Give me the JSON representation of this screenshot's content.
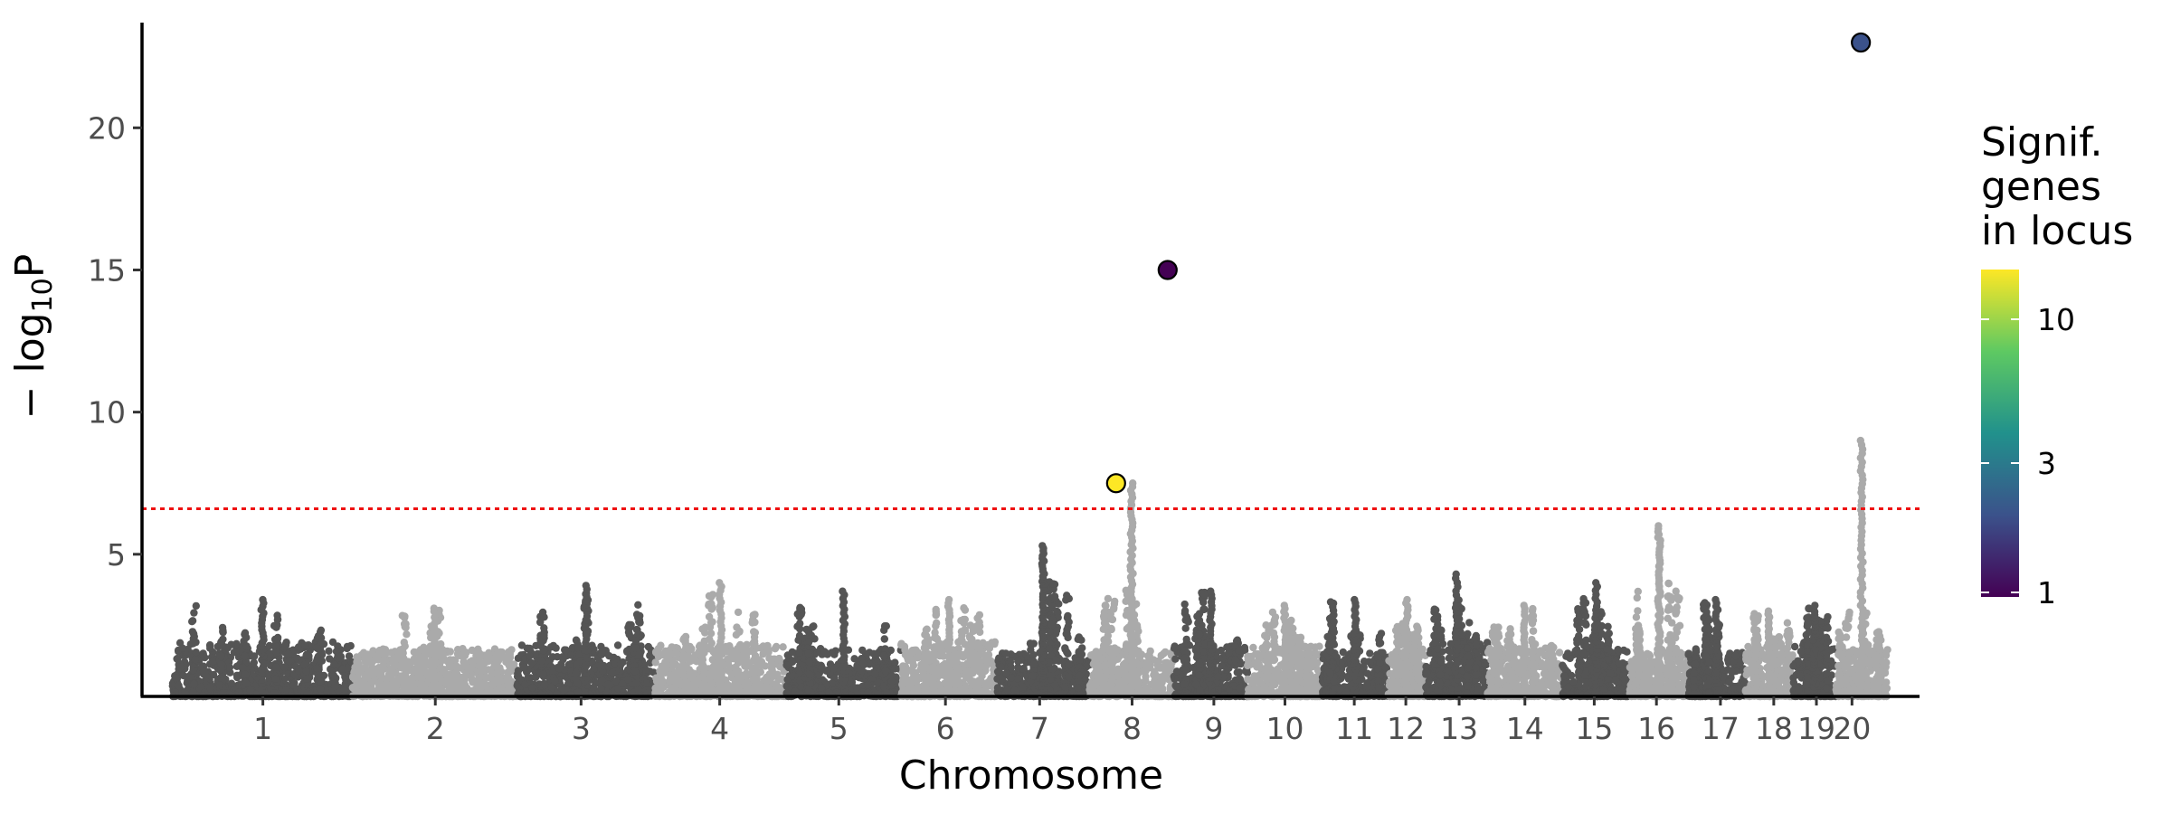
{
  "chart_data": {
    "type": "scatter",
    "subtype": "manhattan",
    "xlabel": "Chromosome",
    "ylabel_main": "− log",
    "ylabel_sub": "10",
    "ylabel_tail": "P",
    "y_ticks": [
      5,
      10,
      15,
      20
    ],
    "y_tick_labels": [
      "5",
      "10",
      "15",
      "20"
    ],
    "ylim": [
      0,
      23.7
    ],
    "grid": false,
    "threshold": {
      "value": 6.6,
      "color": "#ee1111",
      "style": "dotted"
    },
    "band_colors": [
      "#555555",
      "#aaaaaa"
    ],
    "chromosomes": [
      {
        "label": "1",
        "start": 0.0,
        "end": 10.15,
        "base": 1.6,
        "peak": 3.4,
        "tick": 5.1
      },
      {
        "label": "2",
        "start": 10.15,
        "end": 19.4,
        "base": 1.4,
        "peak": 3.1,
        "tick": 14.8
      },
      {
        "label": "3",
        "start": 19.4,
        "end": 27.15,
        "base": 1.5,
        "peak": 3.9,
        "tick": 23.0
      },
      {
        "label": "4",
        "start": 27.15,
        "end": 34.55,
        "base": 1.5,
        "peak": 4.0,
        "tick": 30.8
      },
      {
        "label": "5",
        "start": 34.55,
        "end": 41.0,
        "base": 1.4,
        "peak": 3.7,
        "tick": 37.5
      },
      {
        "label": "6",
        "start": 41.0,
        "end": 46.4,
        "base": 1.6,
        "peak": 3.4,
        "tick": 43.5
      },
      {
        "label": "7",
        "start": 46.4,
        "end": 51.6,
        "base": 1.3,
        "peak": 5.3,
        "tick": 48.8
      },
      {
        "label": "8",
        "start": 51.6,
        "end": 56.35,
        "base": 1.4,
        "peak": 7.5,
        "tick": 54.0
      },
      {
        "label": "9",
        "start": 56.35,
        "end": 60.5,
        "base": 1.5,
        "peak": 3.7,
        "tick": 58.6
      },
      {
        "label": "10",
        "start": 60.5,
        "end": 64.7,
        "base": 1.5,
        "peak": 3.2,
        "tick": 62.6
      },
      {
        "label": "11",
        "start": 64.7,
        "end": 68.4,
        "base": 1.3,
        "peak": 3.4,
        "tick": 66.5
      },
      {
        "label": "12",
        "start": 68.4,
        "end": 70.5,
        "base": 1.4,
        "peak": 3.4,
        "tick": 69.4
      },
      {
        "label": "13",
        "start": 70.5,
        "end": 74.0,
        "base": 1.6,
        "peak": 4.3,
        "tick": 72.4
      },
      {
        "label": "14",
        "start": 74.0,
        "end": 78.2,
        "base": 1.5,
        "peak": 3.2,
        "tick": 76.1
      },
      {
        "label": "15",
        "start": 78.2,
        "end": 82.0,
        "base": 1.4,
        "peak": 4.0,
        "tick": 80.0
      },
      {
        "label": "16",
        "start": 82.0,
        "end": 85.3,
        "base": 1.3,
        "peak": 6.0,
        "tick": 83.5
      },
      {
        "label": "17",
        "start": 85.3,
        "end": 88.5,
        "base": 1.3,
        "peak": 3.4,
        "tick": 87.1
      },
      {
        "label": "18",
        "start": 88.5,
        "end": 91.2,
        "base": 1.5,
        "peak": 3.0,
        "tick": 90.1
      },
      {
        "label": "19",
        "start": 91.2,
        "end": 93.6,
        "base": 1.6,
        "peak": 3.2,
        "tick": 92.5
      },
      {
        "label": "20",
        "start": 93.6,
        "end": 96.5,
        "base": 1.4,
        "peak": 9.0,
        "tick": 94.5
      }
    ],
    "xlim": [
      -1.7,
      98.3
    ],
    "highlighted_loci": [
      {
        "x": 53.1,
        "y": 7.5,
        "genes": 14,
        "color": "#fde725"
      },
      {
        "x": 56.0,
        "y": 15.0,
        "genes": 1,
        "color": "#440154"
      },
      {
        "x": 95.0,
        "y": 23.0,
        "genes": 2,
        "color": "#3b528b"
      }
    ],
    "legend": {
      "title_lines": [
        "Signif.",
        "genes",
        "in locus"
      ],
      "labels": [
        "10",
        "3",
        "1"
      ],
      "colorscale": [
        "#fde725",
        "#5ec962",
        "#21918c",
        "#3b528b",
        "#440154"
      ],
      "placement": "right"
    }
  }
}
